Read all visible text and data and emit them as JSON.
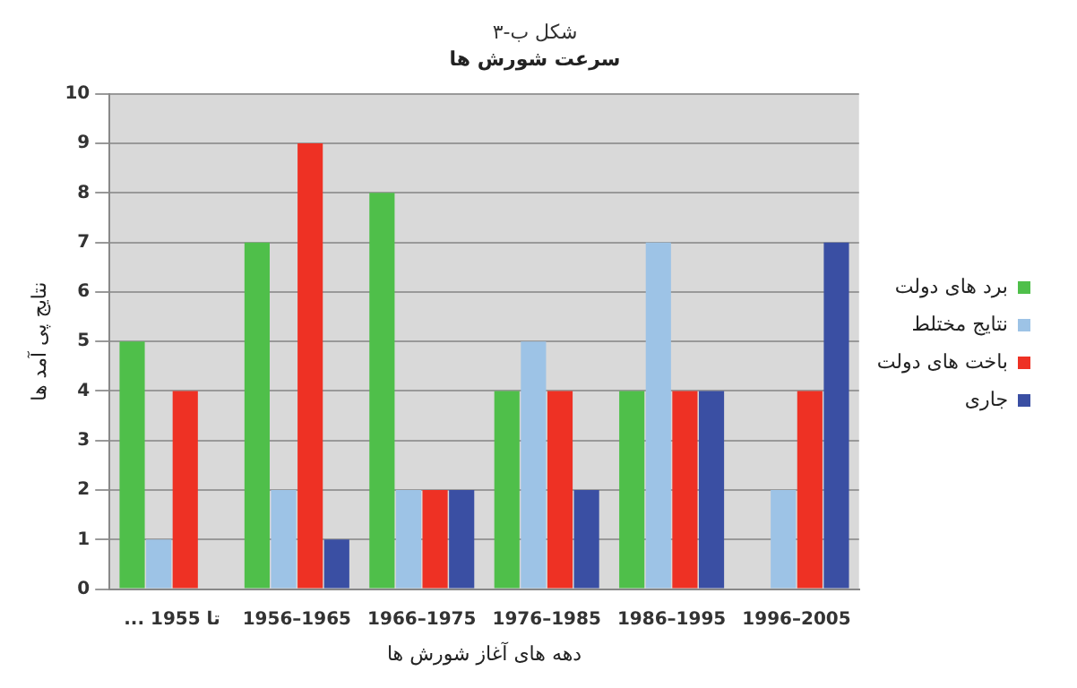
{
  "chart_data": {
    "type": "bar",
    "title": "شکل ب-۳",
    "subtitle": "سرعت شورش ها",
    "xlabel": "دهه های آغاز شورش ها",
    "ylabel": "نتایج پی آمد ها",
    "categories": [
      "... تا 1955",
      "1956–1965",
      "1966–1975",
      "1976–1985",
      "1986–1995",
      "1996–2005"
    ],
    "series": [
      {
        "name": "برد های دولت",
        "color": "#4fbf4a",
        "values": [
          5,
          7,
          8,
          4,
          4,
          0
        ]
      },
      {
        "name": "نتایج مختلط",
        "color": "#9dc3e6",
        "values": [
          1,
          2,
          2,
          5,
          7,
          2
        ]
      },
      {
        "name": "باخت های دولت",
        "color": "#ee3124",
        "values": [
          4,
          9,
          2,
          4,
          4,
          4
        ]
      },
      {
        "name": "جاری",
        "color": "#3a4fa3",
        "values": [
          0,
          1,
          2,
          2,
          4,
          7
        ]
      }
    ],
    "ylim": [
      0,
      10
    ],
    "yticks": [
      0,
      1,
      2,
      3,
      4,
      5,
      6,
      7,
      8,
      9,
      10
    ],
    "grid": "y",
    "legend": "right"
  }
}
